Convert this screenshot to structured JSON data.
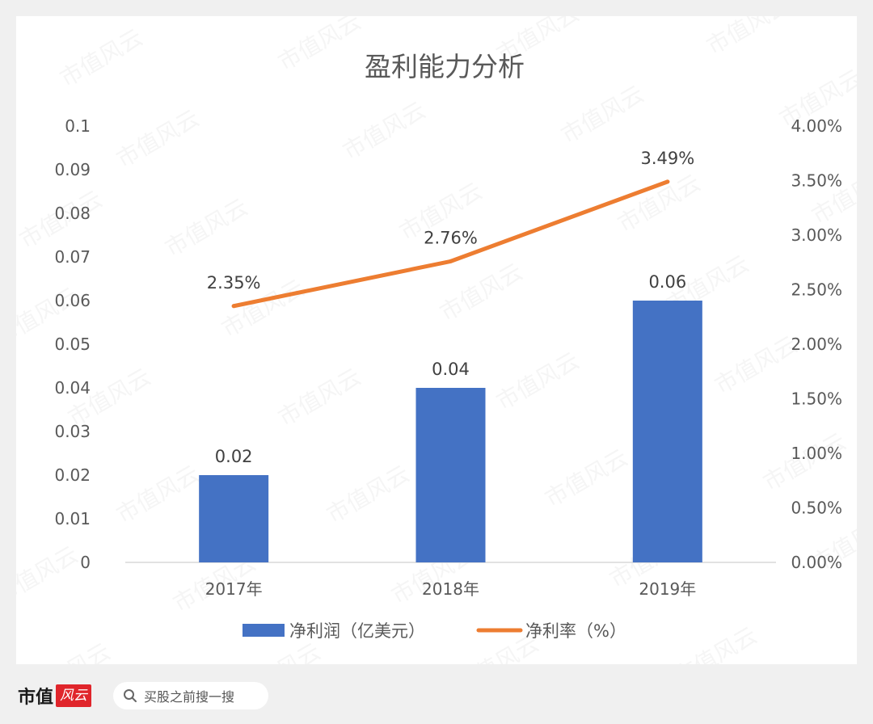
{
  "chart_data": {
    "type": "bar+line",
    "title": "盈利能力分析",
    "categories": [
      "2017年",
      "2018年",
      "2019年"
    ],
    "series": [
      {
        "name": "净利润（亿美元）",
        "type": "bar",
        "axis": "left",
        "color": "#4472C4",
        "values": [
          0.02,
          0.04,
          0.06
        ],
        "data_labels": [
          "0.02",
          "0.04",
          "0.06"
        ]
      },
      {
        "name": "净利率（%）",
        "type": "line",
        "axis": "right",
        "color": "#ED7D31",
        "values": [
          2.35,
          2.76,
          3.49
        ],
        "data_labels": [
          "2.35%",
          "2.76%",
          "3.49%"
        ]
      }
    ],
    "y_left": {
      "min": 0,
      "max": 0.1,
      "ticks": [
        "0",
        "0.01",
        "0.02",
        "0.03",
        "0.04",
        "0.05",
        "0.06",
        "0.07",
        "0.08",
        "0.09",
        "0.1"
      ]
    },
    "y_right": {
      "min": 0,
      "max": 4.0,
      "ticks": [
        "0.00%",
        "0.50%",
        "1.00%",
        "1.50%",
        "2.00%",
        "2.50%",
        "3.00%",
        "3.50%",
        "4.00%"
      ]
    },
    "grid": false,
    "legend_position": "bottom"
  },
  "watermark": "市值风云",
  "footer": {
    "brand": "市值",
    "brand_seal": "风云",
    "search_icon": "search-icon",
    "search_text": "买股之前搜一搜"
  }
}
